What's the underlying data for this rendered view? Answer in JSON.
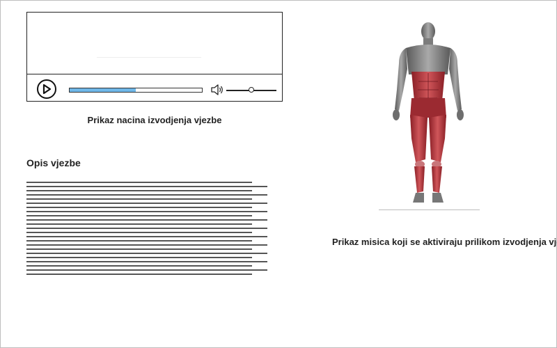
{
  "video": {
    "caption": "Prikaz nacina izvodjenja vjezbe",
    "progress": 0.5,
    "volume": 0.5,
    "icons": [
      "play-icon",
      "speaker-icon"
    ]
  },
  "description": {
    "heading": "Opis vjezbe",
    "text_line_count": 23
  },
  "muscles": {
    "caption": "Prikaz misica koji se aktiviraju prilikom izvodjenja vjezbe",
    "highlight_color": "#b8323a"
  }
}
